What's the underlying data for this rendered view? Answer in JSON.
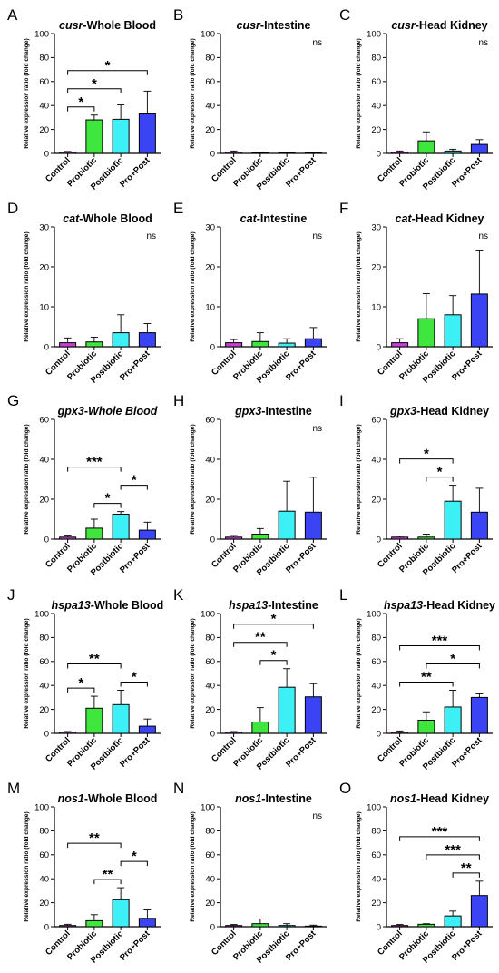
{
  "figure": {
    "ylabel": "Relative expression ratio (fold change)",
    "categories": [
      "Control",
      "Probiotic",
      "Postbiotic",
      "Pro+Post"
    ],
    "colors": [
      "#c53ed6",
      "#3ee63e",
      "#3df0f5",
      "#3a44f5"
    ]
  },
  "chart_data": [
    {
      "letter": "A",
      "type": "bar",
      "gene": "cusr",
      "tissue": "Whole Blood",
      "ylim": [
        0,
        100
      ],
      "yticks": [
        0,
        20,
        40,
        60,
        80,
        100
      ],
      "values": [
        1,
        28,
        28.5,
        33
      ],
      "errors": [
        0.6,
        4,
        12,
        19
      ],
      "ns": "",
      "brackets": [
        {
          "from": 0,
          "to": 1,
          "label": "*"
        },
        {
          "from": 0,
          "to": 2,
          "label": "*"
        },
        {
          "from": 0,
          "to": 3,
          "label": "*"
        }
      ]
    },
    {
      "letter": "B",
      "type": "bar",
      "gene": "cusr",
      "tissue": "Intestine",
      "ylim": [
        0,
        100
      ],
      "yticks": [
        0,
        20,
        40,
        60,
        80,
        100
      ],
      "values": [
        1,
        0.6,
        0.3,
        0.2
      ],
      "errors": [
        1,
        0.5,
        0.3,
        0.2
      ],
      "ns": "ns",
      "brackets": []
    },
    {
      "letter": "C",
      "type": "bar",
      "gene": "cusr",
      "tissue": "Head Kidney",
      "ylim": [
        0,
        100
      ],
      "yticks": [
        0,
        20,
        40,
        60,
        80,
        100
      ],
      "values": [
        1,
        10.5,
        2,
        7.5
      ],
      "errors": [
        1,
        7.5,
        1.5,
        4
      ],
      "ns": "ns",
      "brackets": []
    },
    {
      "letter": "D",
      "type": "bar",
      "gene": "cat",
      "tissue": "Whole Blood",
      "ylim": [
        0,
        30
      ],
      "yticks": [
        0,
        10,
        20,
        30
      ],
      "values": [
        1,
        1.2,
        3.5,
        3.5
      ],
      "errors": [
        1.2,
        1.2,
        4.5,
        2.3
      ],
      "ns": "ns",
      "brackets": []
    },
    {
      "letter": "E",
      "type": "bar",
      "gene": "cat",
      "tissue": "Intestine",
      "ylim": [
        0,
        30
      ],
      "yticks": [
        0,
        10,
        20,
        30
      ],
      "values": [
        1,
        1.3,
        0.9,
        2
      ],
      "errors": [
        0.8,
        2.2,
        1.1,
        2.8
      ],
      "ns": "ns",
      "brackets": []
    },
    {
      "letter": "F",
      "type": "bar",
      "gene": "cat",
      "tissue": "Head Kidney",
      "ylim": [
        0,
        30
      ],
      "yticks": [
        0,
        10,
        20,
        30
      ],
      "values": [
        1,
        7,
        8,
        13.2
      ],
      "errors": [
        1,
        6.3,
        4.8,
        11
      ],
      "ns": "ns",
      "brackets": []
    },
    {
      "letter": "G",
      "type": "bar",
      "gene": "gpx3",
      "tissue": "Whole Blood",
      "italicTissue": true,
      "ylim": [
        0,
        60
      ],
      "yticks": [
        0,
        20,
        40,
        60
      ],
      "values": [
        1,
        5.5,
        12.5,
        4.5
      ],
      "errors": [
        1,
        4.5,
        1.3,
        4
      ],
      "ns": "",
      "brackets": [
        {
          "from": 1,
          "to": 2,
          "label": "*"
        },
        {
          "from": 2,
          "to": 3,
          "label": "*"
        },
        {
          "from": 0,
          "to": 2,
          "label": "***"
        }
      ]
    },
    {
      "letter": "H",
      "type": "bar",
      "gene": "gpx3",
      "tissue": "Intestine",
      "ylim": [
        0,
        60
      ],
      "yticks": [
        0,
        20,
        40,
        60
      ],
      "values": [
        1,
        2.5,
        14,
        13.5
      ],
      "errors": [
        0.8,
        2.8,
        15,
        17.5
      ],
      "ns": "ns",
      "brackets": []
    },
    {
      "letter": "I",
      "type": "bar",
      "gene": "gpx3",
      "tissue": "Head Kidney",
      "ylim": [
        0,
        60
      ],
      "yticks": [
        0,
        20,
        40,
        60
      ],
      "values": [
        1,
        1,
        19,
        13.5
      ],
      "errors": [
        0.5,
        1.5,
        8,
        12
      ],
      "ns": "",
      "brackets": [
        {
          "from": 1,
          "to": 2,
          "label": "*"
        },
        {
          "from": 0,
          "to": 2,
          "label": "*"
        }
      ]
    },
    {
      "letter": "J",
      "type": "bar",
      "gene": "hspa13",
      "tissue": "Whole Blood",
      "ylim": [
        0,
        100
      ],
      "yticks": [
        0,
        20,
        40,
        60,
        80,
        100
      ],
      "values": [
        1,
        21,
        24,
        6
      ],
      "errors": [
        0.5,
        10,
        12,
        6
      ],
      "ns": "",
      "brackets": [
        {
          "from": 0,
          "to": 1,
          "label": "*"
        },
        {
          "from": 2,
          "to": 3,
          "label": "*"
        },
        {
          "from": 0,
          "to": 2,
          "label": "**"
        }
      ]
    },
    {
      "letter": "K",
      "type": "bar",
      "gene": "hspa13",
      "tissue": "Intestine",
      "ylim": [
        0,
        100
      ],
      "yticks": [
        0,
        20,
        40,
        60,
        80,
        100
      ],
      "values": [
        1,
        9.5,
        38.5,
        30.5
      ],
      "errors": [
        0.5,
        12,
        15.5,
        11
      ],
      "ns": "",
      "brackets": [
        {
          "from": 1,
          "to": 2,
          "label": "*"
        },
        {
          "from": 0,
          "to": 2,
          "label": "**"
        },
        {
          "from": 0,
          "to": 3,
          "label": "*"
        }
      ]
    },
    {
      "letter": "L",
      "type": "bar",
      "gene": "hspa13",
      "tissue": "Head Kidney",
      "ylim": [
        0,
        100
      ],
      "yticks": [
        0,
        20,
        40,
        60,
        80,
        100
      ],
      "values": [
        1,
        11,
        22,
        30
      ],
      "errors": [
        1,
        7,
        14,
        3
      ],
      "ns": "",
      "brackets": [
        {
          "from": 0,
          "to": 2,
          "label": "**"
        },
        {
          "from": 1,
          "to": 3,
          "label": "*"
        },
        {
          "from": 0,
          "to": 3,
          "label": "***"
        }
      ]
    },
    {
      "letter": "M",
      "type": "bar",
      "gene": "nos1",
      "tissue": "Whole Blood",
      "ylim": [
        0,
        100
      ],
      "yticks": [
        0,
        20,
        40,
        60,
        80,
        100
      ],
      "values": [
        1,
        5,
        22.5,
        7
      ],
      "errors": [
        1,
        5,
        10,
        7
      ],
      "ns": "",
      "brackets": [
        {
          "from": 1,
          "to": 2,
          "label": "**"
        },
        {
          "from": 2,
          "to": 3,
          "label": "*"
        },
        {
          "from": 0,
          "to": 2,
          "label": "**"
        }
      ]
    },
    {
      "letter": "N",
      "type": "bar",
      "gene": "nos1",
      "tissue": "Intestine",
      "ylim": [
        0,
        100
      ],
      "yticks": [
        0,
        20,
        40,
        60,
        80,
        100
      ],
      "values": [
        1,
        2.5,
        1,
        0.5
      ],
      "errors": [
        0.8,
        4,
        1.5,
        0.8
      ],
      "ns": "ns",
      "brackets": []
    },
    {
      "letter": "O",
      "type": "bar",
      "gene": "nos1",
      "tissue": "Head Kidney",
      "ylim": [
        0,
        100
      ],
      "yticks": [
        0,
        20,
        40,
        60,
        80,
        100
      ],
      "values": [
        1,
        2,
        9,
        26
      ],
      "errors": [
        0.8,
        0.5,
        4,
        12
      ],
      "ns": "",
      "brackets": [
        {
          "from": 2,
          "to": 3,
          "label": "**"
        },
        {
          "from": 1,
          "to": 3,
          "label": "***"
        },
        {
          "from": 0,
          "to": 3,
          "label": "***"
        }
      ]
    }
  ]
}
